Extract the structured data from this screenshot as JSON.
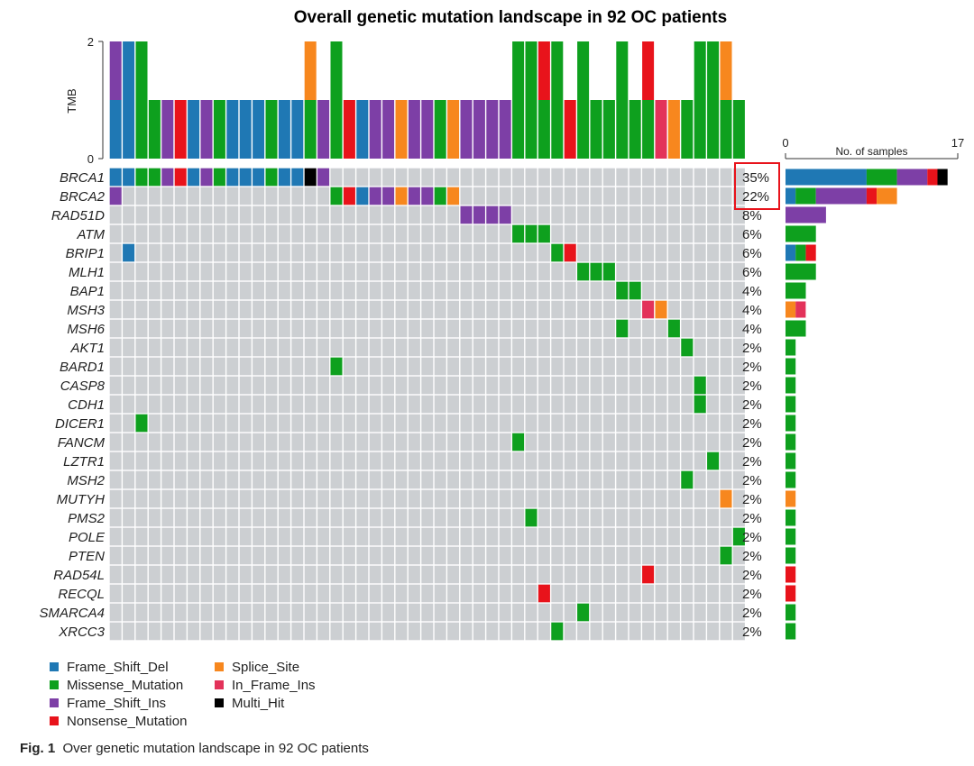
{
  "chart_data": {
    "type": "heatmap",
    "title": "Overall genetic mutation landscape in 92 OC patients",
    "tmb_axis": {
      "label": "TMB",
      "ticks": [
        "0",
        "2"
      ],
      "range": [
        0,
        2
      ]
    },
    "samples_axis": {
      "label": "No. of samples",
      "ticks": [
        "0",
        "17"
      ],
      "range": [
        0,
        17
      ]
    },
    "colors": {
      "Frame_Shift_Del": "#1f78b4",
      "Missense_Mutation": "#0ea01e",
      "Frame_Shift_Ins": "#7d3fa6",
      "Nonsense_Mutation": "#e8131b",
      "Splice_Site": "#f7871e",
      "In_Frame_Ins": "#e3325a",
      "Multi_Hit": "#000000",
      "background": "#cccfd2"
    },
    "legend": [
      {
        "key": "Frame_Shift_Del",
        "label": "Frame_Shift_Del"
      },
      {
        "key": "Missense_Mutation",
        "label": "Missense_Mutation"
      },
      {
        "key": "Frame_Shift_Ins",
        "label": "Frame_Shift_Ins"
      },
      {
        "key": "Nonsense_Mutation",
        "label": "Nonsense_Mutation"
      },
      {
        "key": "Splice_Site",
        "label": "Splice_Site"
      },
      {
        "key": "In_Frame_Ins",
        "label": "In_Frame_Ins"
      },
      {
        "key": "Multi_Hit",
        "label": "Multi_Hit"
      }
    ],
    "n_columns": 49,
    "genes": [
      "BRCA1",
      "BRCA2",
      "RAD51D",
      "ATM",
      "BRIP1",
      "MLH1",
      "BAP1",
      "MSH3",
      "MSH6",
      "AKT1",
      "BARD1",
      "CASP8",
      "CDH1",
      "DICER1",
      "FANCM",
      "LZTR1",
      "MSH2",
      "MUTYH",
      "PMS2",
      "POLE",
      "PTEN",
      "RAD54L",
      "RECQL",
      "SMARCA4",
      "XRCC3"
    ],
    "percentages": [
      "35%",
      "22%",
      "8%",
      "6%",
      "6%",
      "6%",
      "4%",
      "4%",
      "4%",
      "2%",
      "2%",
      "2%",
      "2%",
      "2%",
      "2%",
      "2%",
      "2%",
      "2%",
      "2%",
      "2%",
      "2%",
      "2%",
      "2%",
      "2%",
      "2%"
    ],
    "highlighted_rows": [
      0,
      1
    ],
    "tmb_bars": [
      [
        "Frame_Shift_Del",
        "Frame_Shift_Ins"
      ],
      [
        "Frame_Shift_Del",
        "Frame_Shift_Del"
      ],
      [
        "Missense_Mutation",
        "Missense_Mutation"
      ],
      [
        "Missense_Mutation"
      ],
      [
        "Frame_Shift_Ins"
      ],
      [
        "Nonsense_Mutation"
      ],
      [
        "Frame_Shift_Del"
      ],
      [
        "Frame_Shift_Ins"
      ],
      [
        "Missense_Mutation"
      ],
      [
        "Frame_Shift_Del"
      ],
      [
        "Frame_Shift_Del"
      ],
      [
        "Frame_Shift_Del"
      ],
      [
        "Missense_Mutation"
      ],
      [
        "Frame_Shift_Del"
      ],
      [
        "Frame_Shift_Del"
      ],
      [
        "Missense_Mutation",
        "Splice_Site"
      ],
      [
        "Frame_Shift_Ins"
      ],
      [
        "Missense_Mutation",
        "Missense_Mutation"
      ],
      [
        "Nonsense_Mutation"
      ],
      [
        "Frame_Shift_Del"
      ],
      [
        "Frame_Shift_Ins"
      ],
      [
        "Frame_Shift_Ins"
      ],
      [
        "Splice_Site"
      ],
      [
        "Frame_Shift_Ins"
      ],
      [
        "Frame_Shift_Ins"
      ],
      [
        "Missense_Mutation"
      ],
      [
        "Splice_Site"
      ],
      [
        "Frame_Shift_Ins"
      ],
      [
        "Frame_Shift_Ins"
      ],
      [
        "Frame_Shift_Ins"
      ],
      [
        "Frame_Shift_Ins"
      ],
      [
        "Missense_Mutation",
        "Missense_Mutation"
      ],
      [
        "Missense_Mutation",
        "Missense_Mutation"
      ],
      [
        "Missense_Mutation",
        "Nonsense_Mutation"
      ],
      [
        "Missense_Mutation",
        "Missense_Mutation"
      ],
      [
        "Nonsense_Mutation"
      ],
      [
        "Missense_Mutation",
        "Missense_Mutation"
      ],
      [
        "Missense_Mutation"
      ],
      [
        "Missense_Mutation"
      ],
      [
        "Missense_Mutation",
        "Missense_Mutation"
      ],
      [
        "Missense_Mutation"
      ],
      [
        "Missense_Mutation",
        "Nonsense_Mutation"
      ],
      [
        "In_Frame_Ins"
      ],
      [
        "Splice_Site"
      ],
      [
        "Missense_Mutation"
      ],
      [
        "Missense_Mutation",
        "Missense_Mutation"
      ],
      [
        "Missense_Mutation",
        "Missense_Mutation"
      ],
      [
        "Missense_Mutation",
        "Splice_Site"
      ],
      [
        "Missense_Mutation"
      ]
    ],
    "mutations": [
      {
        "gene": 0,
        "col": 0,
        "type": "Frame_Shift_Del"
      },
      {
        "gene": 0,
        "col": 1,
        "type": "Frame_Shift_Del"
      },
      {
        "gene": 0,
        "col": 2,
        "type": "Missense_Mutation"
      },
      {
        "gene": 0,
        "col": 3,
        "type": "Missense_Mutation"
      },
      {
        "gene": 0,
        "col": 4,
        "type": "Frame_Shift_Ins"
      },
      {
        "gene": 0,
        "col": 5,
        "type": "Nonsense_Mutation"
      },
      {
        "gene": 0,
        "col": 6,
        "type": "Frame_Shift_Del"
      },
      {
        "gene": 0,
        "col": 7,
        "type": "Frame_Shift_Ins"
      },
      {
        "gene": 0,
        "col": 8,
        "type": "Missense_Mutation"
      },
      {
        "gene": 0,
        "col": 9,
        "type": "Frame_Shift_Del"
      },
      {
        "gene": 0,
        "col": 10,
        "type": "Frame_Shift_Del"
      },
      {
        "gene": 0,
        "col": 11,
        "type": "Frame_Shift_Del"
      },
      {
        "gene": 0,
        "col": 12,
        "type": "Missense_Mutation"
      },
      {
        "gene": 0,
        "col": 13,
        "type": "Frame_Shift_Del"
      },
      {
        "gene": 0,
        "col": 14,
        "type": "Frame_Shift_Del"
      },
      {
        "gene": 0,
        "col": 15,
        "type": "Multi_Hit"
      },
      {
        "gene": 0,
        "col": 16,
        "type": "Frame_Shift_Ins"
      },
      {
        "gene": 1,
        "col": 0,
        "type": "Frame_Shift_Ins"
      },
      {
        "gene": 1,
        "col": 17,
        "type": "Missense_Mutation"
      },
      {
        "gene": 1,
        "col": 18,
        "type": "Nonsense_Mutation"
      },
      {
        "gene": 1,
        "col": 19,
        "type": "Frame_Shift_Del"
      },
      {
        "gene": 1,
        "col": 20,
        "type": "Frame_Shift_Ins"
      },
      {
        "gene": 1,
        "col": 21,
        "type": "Frame_Shift_Ins"
      },
      {
        "gene": 1,
        "col": 22,
        "type": "Splice_Site"
      },
      {
        "gene": 1,
        "col": 23,
        "type": "Frame_Shift_Ins"
      },
      {
        "gene": 1,
        "col": 24,
        "type": "Frame_Shift_Ins"
      },
      {
        "gene": 1,
        "col": 25,
        "type": "Missense_Mutation"
      },
      {
        "gene": 1,
        "col": 26,
        "type": "Splice_Site"
      },
      {
        "gene": 2,
        "col": 27,
        "type": "Frame_Shift_Ins"
      },
      {
        "gene": 2,
        "col": 28,
        "type": "Frame_Shift_Ins"
      },
      {
        "gene": 2,
        "col": 29,
        "type": "Frame_Shift_Ins"
      },
      {
        "gene": 2,
        "col": 30,
        "type": "Frame_Shift_Ins"
      },
      {
        "gene": 3,
        "col": 31,
        "type": "Missense_Mutation"
      },
      {
        "gene": 3,
        "col": 32,
        "type": "Missense_Mutation"
      },
      {
        "gene": 3,
        "col": 33,
        "type": "Missense_Mutation"
      },
      {
        "gene": 4,
        "col": 1,
        "type": "Frame_Shift_Del"
      },
      {
        "gene": 4,
        "col": 34,
        "type": "Missense_Mutation"
      },
      {
        "gene": 4,
        "col": 35,
        "type": "Nonsense_Mutation"
      },
      {
        "gene": 5,
        "col": 36,
        "type": "Missense_Mutation"
      },
      {
        "gene": 5,
        "col": 37,
        "type": "Missense_Mutation"
      },
      {
        "gene": 5,
        "col": 38,
        "type": "Missense_Mutation"
      },
      {
        "gene": 6,
        "col": 39,
        "type": "Missense_Mutation"
      },
      {
        "gene": 6,
        "col": 40,
        "type": "Missense_Mutation"
      },
      {
        "gene": 7,
        "col": 41,
        "type": "In_Frame_Ins"
      },
      {
        "gene": 7,
        "col": 42,
        "type": "Splice_Site"
      },
      {
        "gene": 8,
        "col": 39,
        "type": "Missense_Mutation"
      },
      {
        "gene": 8,
        "col": 43,
        "type": "Missense_Mutation"
      },
      {
        "gene": 9,
        "col": 44,
        "type": "Missense_Mutation"
      },
      {
        "gene": 10,
        "col": 17,
        "type": "Missense_Mutation"
      },
      {
        "gene": 11,
        "col": 45,
        "type": "Missense_Mutation"
      },
      {
        "gene": 12,
        "col": 45,
        "type": "Missense_Mutation"
      },
      {
        "gene": 13,
        "col": 2,
        "type": "Missense_Mutation"
      },
      {
        "gene": 14,
        "col": 31,
        "type": "Missense_Mutation"
      },
      {
        "gene": 15,
        "col": 46,
        "type": "Missense_Mutation"
      },
      {
        "gene": 16,
        "col": 44,
        "type": "Missense_Mutation"
      },
      {
        "gene": 17,
        "col": 47,
        "type": "Splice_Site"
      },
      {
        "gene": 18,
        "col": 32,
        "type": "Missense_Mutation"
      },
      {
        "gene": 19,
        "col": 48,
        "type": "Missense_Mutation"
      },
      {
        "gene": 20,
        "col": 47,
        "type": "Missense_Mutation"
      },
      {
        "gene": 21,
        "col": 41,
        "type": "Nonsense_Mutation"
      },
      {
        "gene": 22,
        "col": 33,
        "type": "Nonsense_Mutation"
      },
      {
        "gene": 23,
        "col": 36,
        "type": "Missense_Mutation"
      },
      {
        "gene": 24,
        "col": 34,
        "type": "Missense_Mutation"
      }
    ],
    "gene_counts": [
      [
        [
          "Frame_Shift_Del",
          8
        ],
        [
          "Missense_Mutation",
          3
        ],
        [
          "Frame_Shift_Ins",
          3
        ],
        [
          "Nonsense_Mutation",
          1
        ],
        [
          "Multi_Hit",
          1
        ]
      ],
      [
        [
          "Frame_Shift_Del",
          1
        ],
        [
          "Missense_Mutation",
          2
        ],
        [
          "Frame_Shift_Ins",
          5
        ],
        [
          "Nonsense_Mutation",
          1
        ],
        [
          "Splice_Site",
          2
        ]
      ],
      [
        [
          "Frame_Shift_Ins",
          4
        ]
      ],
      [
        [
          "Missense_Mutation",
          3
        ]
      ],
      [
        [
          "Frame_Shift_Del",
          1
        ],
        [
          "Missense_Mutation",
          1
        ],
        [
          "Nonsense_Mutation",
          1
        ]
      ],
      [
        [
          "Missense_Mutation",
          3
        ]
      ],
      [
        [
          "Missense_Mutation",
          2
        ]
      ],
      [
        [
          "Splice_Site",
          1
        ],
        [
          "In_Frame_Ins",
          1
        ]
      ],
      [
        [
          "Missense_Mutation",
          2
        ]
      ],
      [
        [
          "Missense_Mutation",
          1
        ]
      ],
      [
        [
          "Missense_Mutation",
          1
        ]
      ],
      [
        [
          "Missense_Mutation",
          1
        ]
      ],
      [
        [
          "Missense_Mutation",
          1
        ]
      ],
      [
        [
          "Missense_Mutation",
          1
        ]
      ],
      [
        [
          "Missense_Mutation",
          1
        ]
      ],
      [
        [
          "Missense_Mutation",
          1
        ]
      ],
      [
        [
          "Missense_Mutation",
          1
        ]
      ],
      [
        [
          "Splice_Site",
          1
        ]
      ],
      [
        [
          "Missense_Mutation",
          1
        ]
      ],
      [
        [
          "Missense_Mutation",
          1
        ]
      ],
      [
        [
          "Missense_Mutation",
          1
        ]
      ],
      [
        [
          "Nonsense_Mutation",
          1
        ]
      ],
      [
        [
          "Nonsense_Mutation",
          1
        ]
      ],
      [
        [
          "Missense_Mutation",
          1
        ]
      ],
      [
        [
          "Missense_Mutation",
          1
        ]
      ]
    ]
  },
  "caption": {
    "label": "Fig. 1",
    "text": "Over genetic mutation landscape in 92 OC patients"
  }
}
